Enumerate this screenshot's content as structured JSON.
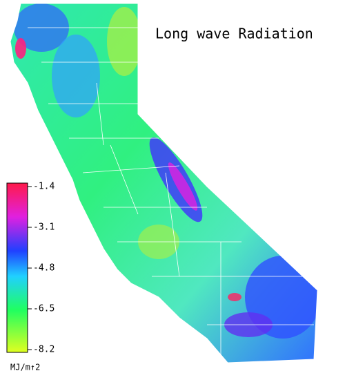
{
  "title": "Long wave Radiation",
  "colorbar": {
    "lim": [
      -8.2,
      -1.4
    ],
    "ticks": [
      -1.4,
      -3.1,
      -4.8,
      -6.5,
      -8.2
    ],
    "unit": "MJ/m↑2"
  }
}
